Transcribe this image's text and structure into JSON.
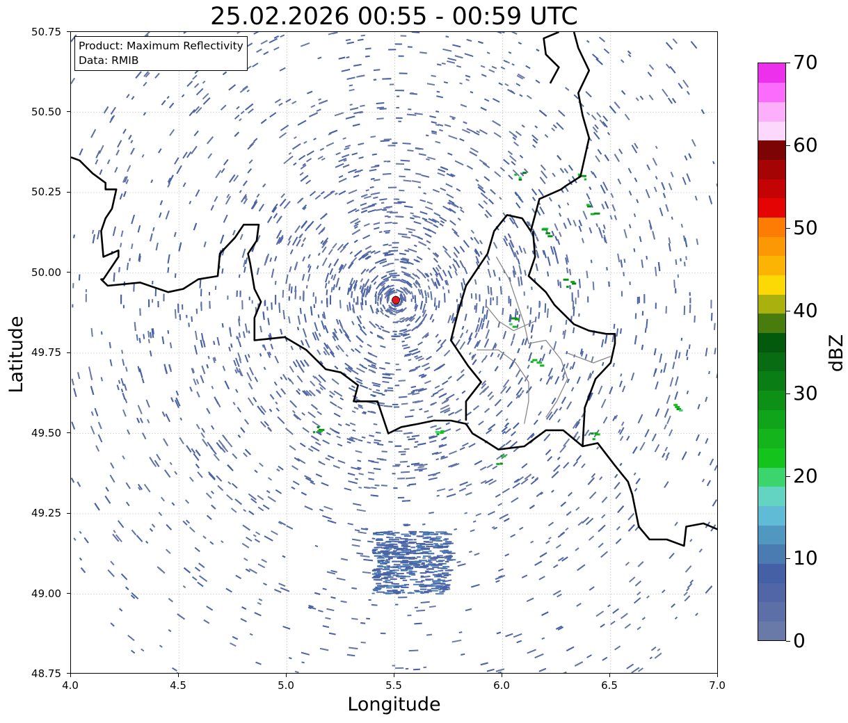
{
  "title": "25.02.2026 00:55 - 00:59 UTC",
  "info": {
    "product": "Product: Maximum Reflectivity",
    "data": "Data: RMIB"
  },
  "map": {
    "xlabel": "Longitude",
    "ylabel": "Latitude",
    "xlim": [
      4.0,
      7.0
    ],
    "ylim": [
      48.75,
      50.75
    ],
    "xticks": [
      "4.0",
      "4.5",
      "5.0",
      "5.5",
      "6.0",
      "6.5",
      "7.0"
    ],
    "yticks": [
      "50.75",
      "50.50",
      "50.25",
      "50.00",
      "49.75",
      "49.50",
      "49.25",
      "49.00",
      "48.75"
    ],
    "grid": true,
    "radar_site": {
      "lon": 5.505,
      "lat": 49.915,
      "color": "#e8141c"
    }
  },
  "colorbar": {
    "label": "dBZ",
    "ticks": [
      "0",
      "10",
      "20",
      "30",
      "40",
      "50",
      "60",
      "70"
    ],
    "range": [
      0,
      70
    ],
    "colors": [
      "#6a7aa8",
      "#5c6fa6",
      "#5066a6",
      "#4660a6",
      "#4a7cb2",
      "#5098c0",
      "#60bcd6",
      "#64d4c2",
      "#3cd46c",
      "#14c41c",
      "#14b41c",
      "#10a41a",
      "#0c9016",
      "#0a7e14",
      "#086c12",
      "#045a0c",
      "#487c0c",
      "#aab00c",
      "#fcd804",
      "#fcb404",
      "#fc9804",
      "#fc7c04",
      "#e40404",
      "#c40404",
      "#a40404",
      "#7c0404",
      "#fcd8fc",
      "#fcb0fc",
      "#fc6cfc",
      "#ec30ec"
    ]
  }
}
